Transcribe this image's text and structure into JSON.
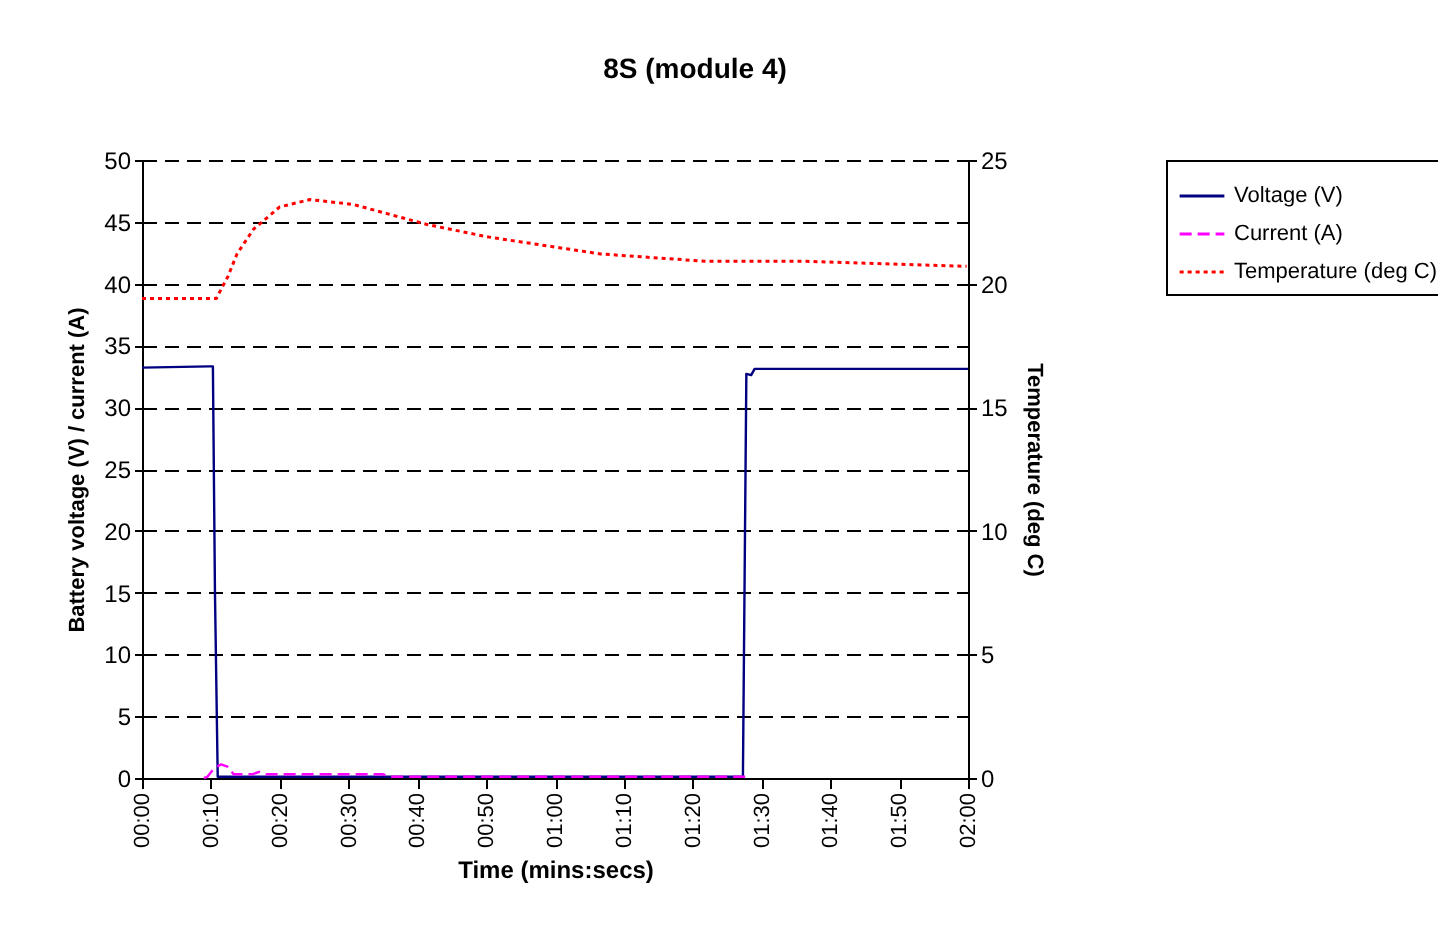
{
  "chart_data": {
    "type": "line",
    "title": "8S (module 4)",
    "xlabel": "Time (mins:secs)",
    "ylabel": "Battery voltage (V) / current (A)",
    "y2label": "Temperature (deg C)",
    "xlim": [
      0,
      120
    ],
    "xticks": [
      {
        "value": 0,
        "label": "00:00"
      },
      {
        "value": 10,
        "label": "00:10"
      },
      {
        "value": 20,
        "label": "00:20"
      },
      {
        "value": 30,
        "label": "00:30"
      },
      {
        "value": 40,
        "label": "00:40"
      },
      {
        "value": 50,
        "label": "00:50"
      },
      {
        "value": 60,
        "label": "01:00"
      },
      {
        "value": 70,
        "label": "01:10"
      },
      {
        "value": 80,
        "label": "01:20"
      },
      {
        "value": 90,
        "label": "01:30"
      },
      {
        "value": 100,
        "label": "01:40"
      },
      {
        "value": 110,
        "label": "01:50"
      },
      {
        "value": 120,
        "label": "02:00"
      }
    ],
    "ylim": [
      0,
      50
    ],
    "yticks": [
      0,
      5,
      10,
      15,
      20,
      25,
      30,
      35,
      40,
      45,
      50
    ],
    "y2lim": [
      0,
      25
    ],
    "y2ticks": [
      0,
      5,
      10,
      15,
      20,
      25
    ],
    "grid": "y",
    "legend": "right",
    "marker": "none",
    "series": [
      {
        "name": "Voltage (V)",
        "color": "#000080",
        "line_style": "solid",
        "x": [
          0,
          9.8,
          10.3,
          10.6,
          11,
          87.3,
          87.8,
          88.5,
          89,
          120
        ],
        "values": [
          33.2,
          33.3,
          33.3,
          15,
          0.1,
          0.1,
          32.7,
          32.6,
          33.1,
          33.1
        ]
      },
      {
        "name": "Current (A)",
        "color": "#ff00ff",
        "line_style": "dashed",
        "x": [
          9,
          9.5,
          10.5,
          11.5,
          12.5,
          13.3,
          16,
          17,
          18,
          35,
          36,
          88
        ],
        "values": [
          0,
          0.1,
          0.8,
          1.1,
          0.9,
          0.3,
          0.3,
          0.5,
          0.3,
          0.3,
          0.1,
          0.1
        ]
      },
      {
        "name": "Temperature (deg C)",
        "color": "#ff0000",
        "line_style": "dotted",
        "axis": "y2",
        "x": [
          0,
          10.8,
          12.5,
          13.8,
          16.2,
          20,
          24.4,
          30.7,
          41.3,
          50,
          66.6,
          82,
          96.5,
          119.8
        ],
        "values": [
          19.4,
          19.4,
          20.3,
          21.2,
          22.2,
          23.1,
          23.4,
          23.2,
          22.4,
          21.9,
          21.2,
          20.9,
          20.9,
          20.7
        ]
      }
    ]
  }
}
